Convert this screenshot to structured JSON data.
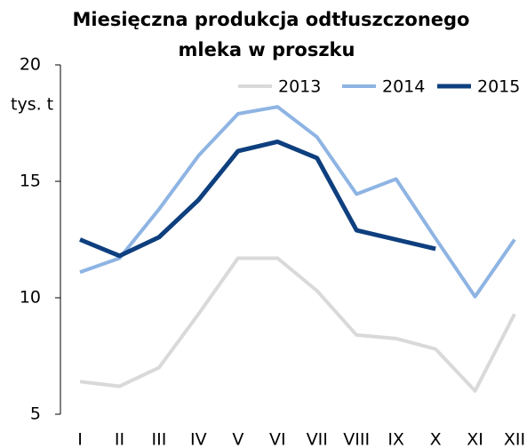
{
  "chart_data": {
    "type": "line",
    "title": [
      "Miesięczna produkcja odtłuszczonego",
      "mleka w proszku"
    ],
    "y_label": "tys. t",
    "categories": [
      "I",
      "II",
      "III",
      "IV",
      "V",
      "VI",
      "VII",
      "VIII",
      "IX",
      "X",
      "XI",
      "XII"
    ],
    "series": [
      {
        "name": "2013",
        "color": "#d9d9d9",
        "width": 4,
        "values": [
          6.4,
          6.2,
          7.0,
          9.3,
          11.7,
          11.7,
          10.3,
          8.4,
          8.25,
          7.8,
          6.0,
          9.3
        ]
      },
      {
        "name": "2014",
        "color": "#8eb4e3",
        "width": 4,
        "values": [
          11.1,
          11.7,
          13.8,
          16.1,
          17.9,
          18.2,
          16.9,
          14.45,
          15.1,
          12.55,
          10.05,
          12.5
        ]
      },
      {
        "name": "2015",
        "color": "#0e3f7e",
        "width": 5,
        "values": [
          12.5,
          11.8,
          12.6,
          14.2,
          16.3,
          16.7,
          16.0,
          12.9,
          12.5,
          12.1,
          null,
          null
        ]
      }
    ],
    "ylim": [
      5,
      20
    ],
    "yticks": [
      5,
      10,
      15,
      20
    ],
    "legend": "top-right"
  }
}
